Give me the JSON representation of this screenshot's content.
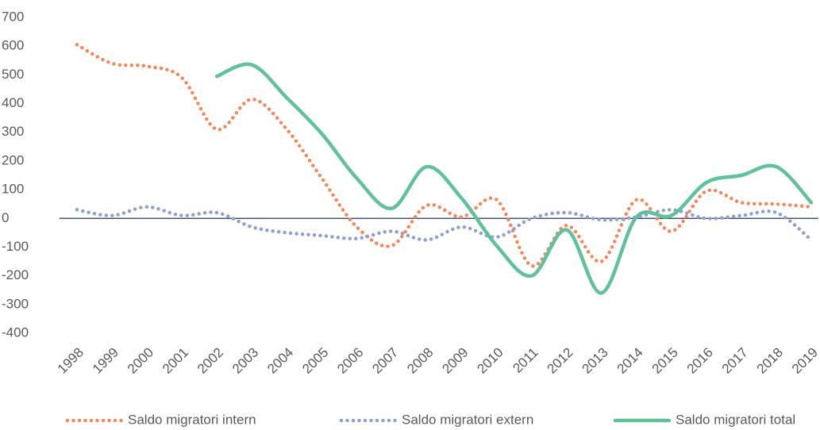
{
  "chart_data": {
    "type": "line",
    "categories": [
      "1998",
      "1999",
      "2000",
      "2001",
      "2002",
      "2003",
      "2004",
      "2005",
      "2006",
      "2007",
      "2008",
      "2009",
      "2010",
      "2011",
      "2012",
      "2013",
      "2014",
      "2015",
      "2016",
      "2017",
      "2018",
      "2019"
    ],
    "series": [
      {
        "name": "Saldo migratori intern",
        "color": "#f4875a",
        "style": "dotted",
        "values": [
          605,
          540,
          530,
          490,
          310,
          415,
          310,
          140,
          -30,
          -95,
          45,
          5,
          65,
          -165,
          -25,
          -150,
          65,
          -45,
          95,
          55,
          50,
          40
        ]
      },
      {
        "name": "Saldo migratori extern",
        "color": "#8f9fd0",
        "style": "dotted",
        "values": [
          30,
          10,
          40,
          10,
          20,
          -30,
          -50,
          -60,
          -70,
          -45,
          -75,
          -30,
          -65,
          0,
          20,
          -5,
          5,
          30,
          0,
          10,
          20,
          -75
        ]
      },
      {
        "name": "Saldo migratori total",
        "color": "#5fc29a",
        "style": "solid",
        "values": [
          null,
          null,
          null,
          null,
          495,
          535,
          420,
          295,
          140,
          35,
          180,
          70,
          -95,
          -200,
          -40,
          -260,
          5,
          10,
          125,
          150,
          180,
          55
        ]
      }
    ],
    "ylim": [
      -400,
      700
    ],
    "yticks": [
      -400,
      -300,
      -200,
      -100,
      0,
      100,
      200,
      300,
      400,
      500,
      600,
      700
    ],
    "grid": false,
    "legend": "bottom"
  }
}
